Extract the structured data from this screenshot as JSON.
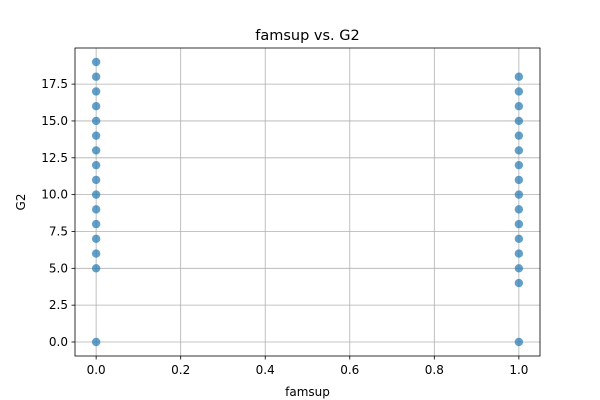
{
  "chart_data": {
    "type": "scatter",
    "title": "famsup vs. G2",
    "xlabel": "famsup",
    "ylabel": "G2",
    "xlim": [
      -0.05,
      1.05
    ],
    "ylim": [
      -0.95,
      19.95
    ],
    "grid": true,
    "marker_color": "#1f77b4",
    "marker_alpha": 0.7,
    "x_ticks": [
      "0.0",
      "0.2",
      "0.4",
      "0.6",
      "0.8",
      "1.0"
    ],
    "y_ticks": [
      "0.0",
      "2.5",
      "5.0",
      "7.5",
      "10.0",
      "12.5",
      "15.0",
      "17.5"
    ],
    "series": [
      {
        "points": [
          {
            "x": 0,
            "y": 0
          },
          {
            "x": 0,
            "y": 5
          },
          {
            "x": 0,
            "y": 6
          },
          {
            "x": 0,
            "y": 7
          },
          {
            "x": 0,
            "y": 8
          },
          {
            "x": 0,
            "y": 9
          },
          {
            "x": 0,
            "y": 10
          },
          {
            "x": 0,
            "y": 11
          },
          {
            "x": 0,
            "y": 12
          },
          {
            "x": 0,
            "y": 13
          },
          {
            "x": 0,
            "y": 14
          },
          {
            "x": 0,
            "y": 15
          },
          {
            "x": 0,
            "y": 16
          },
          {
            "x": 0,
            "y": 17
          },
          {
            "x": 0,
            "y": 18
          },
          {
            "x": 0,
            "y": 19
          },
          {
            "x": 1,
            "y": 0
          },
          {
            "x": 1,
            "y": 4
          },
          {
            "x": 1,
            "y": 5
          },
          {
            "x": 1,
            "y": 6
          },
          {
            "x": 1,
            "y": 7
          },
          {
            "x": 1,
            "y": 8
          },
          {
            "x": 1,
            "y": 9
          },
          {
            "x": 1,
            "y": 10
          },
          {
            "x": 1,
            "y": 11
          },
          {
            "x": 1,
            "y": 12
          },
          {
            "x": 1,
            "y": 13
          },
          {
            "x": 1,
            "y": 14
          },
          {
            "x": 1,
            "y": 15
          },
          {
            "x": 1,
            "y": 16
          },
          {
            "x": 1,
            "y": 17
          },
          {
            "x": 1,
            "y": 18
          }
        ]
      }
    ]
  }
}
